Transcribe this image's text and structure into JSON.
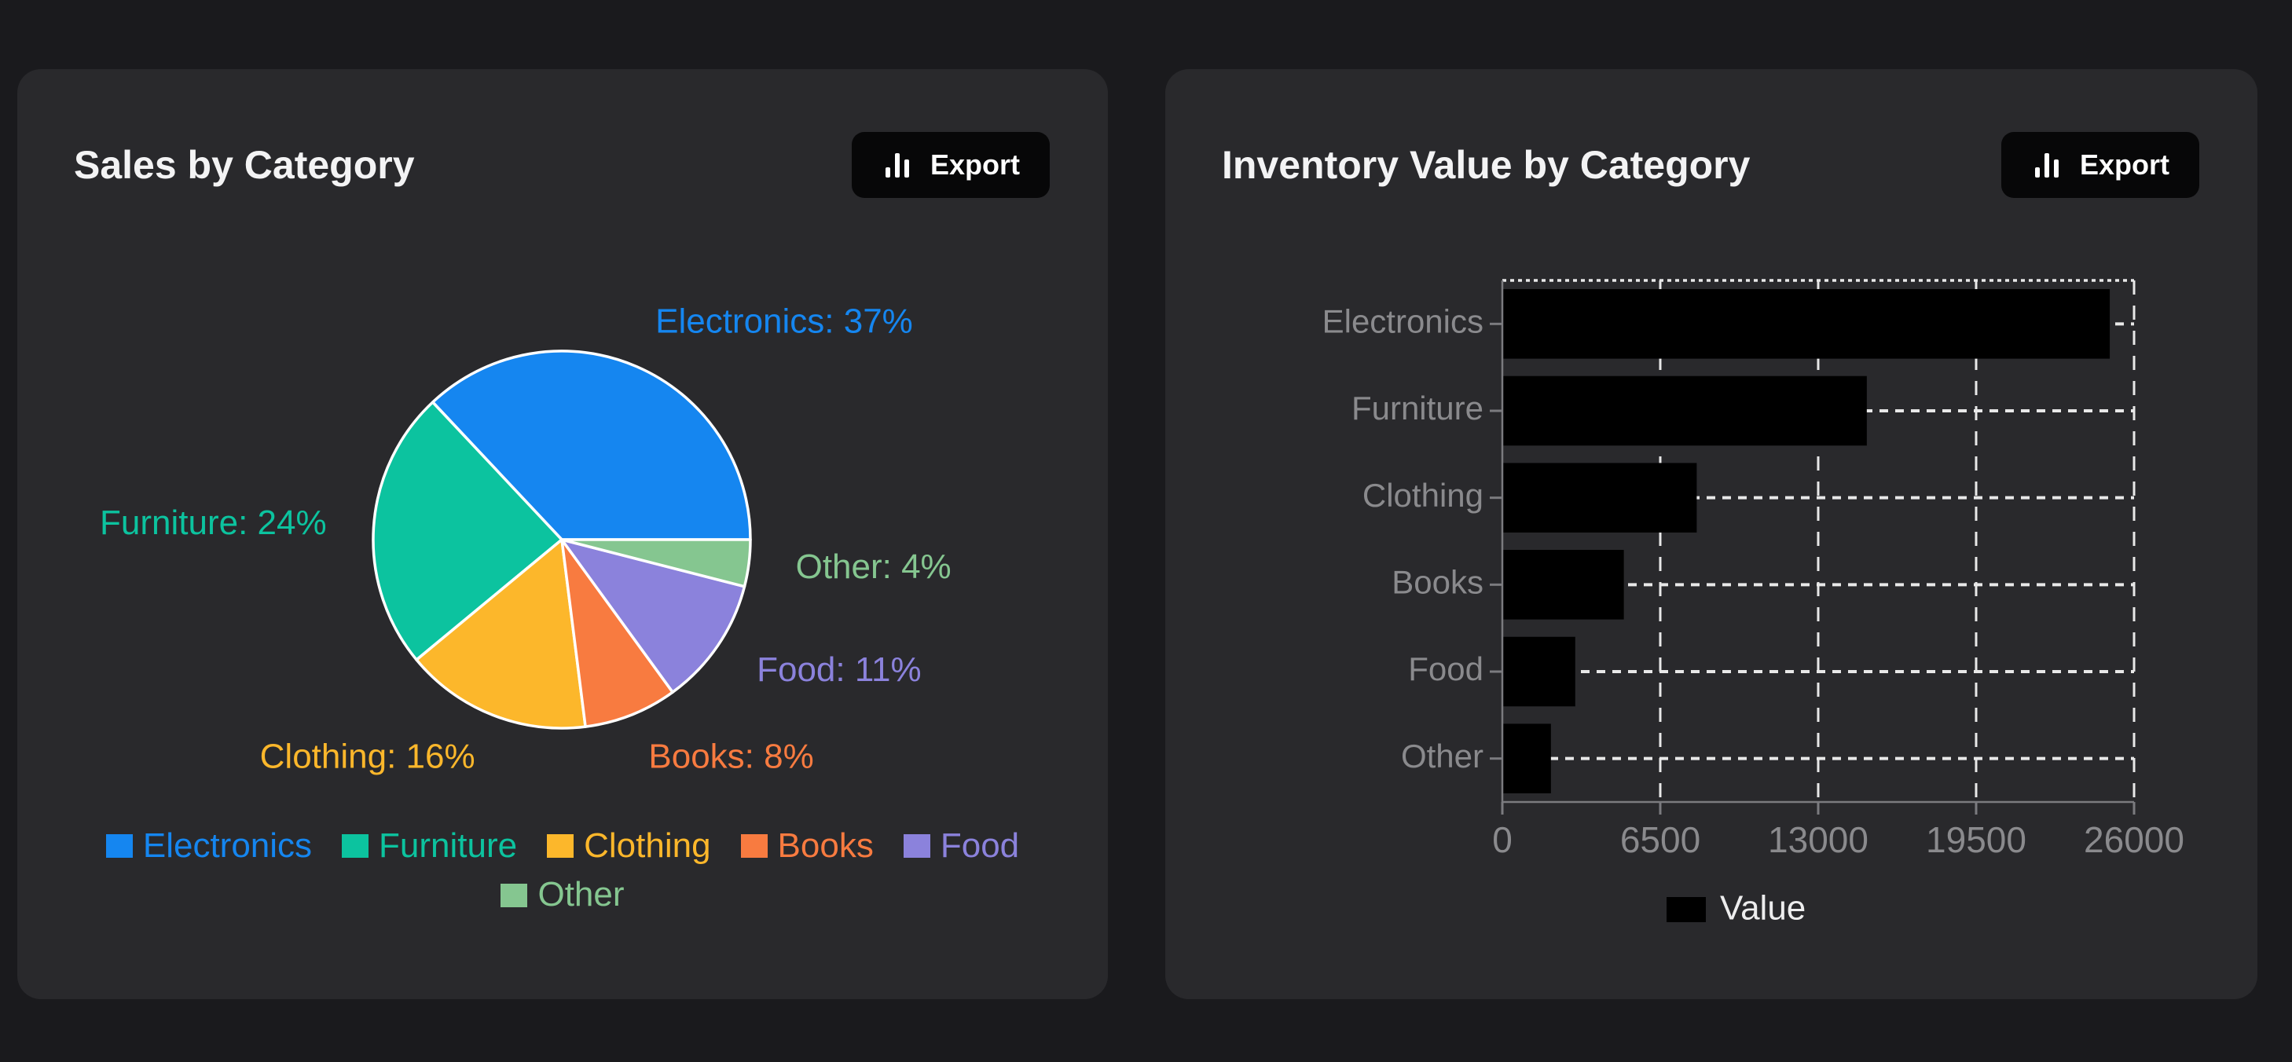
{
  "page": {
    "background": "#1a1a1d",
    "card_background": "#29292c",
    "title_color": "#f3f3f4",
    "muted_label_color": "#7b7b7f",
    "export_button_bg": "#070708",
    "export_button_fg": "#ffffff"
  },
  "cards": [
    {
      "title": "Sales by Category",
      "export_label": "Export"
    },
    {
      "title": "Inventory Value by Category",
      "export_label": "Export"
    }
  ],
  "chart_data": [
    {
      "type": "pie",
      "title": "Sales by Category",
      "categories": [
        "Electronics",
        "Furniture",
        "Clothing",
        "Books",
        "Food",
        "Other"
      ],
      "values": [
        37,
        24,
        16,
        8,
        11,
        4
      ],
      "unit": "%",
      "slice_labels": [
        "Electronics: 37%",
        "Furniture: 24%",
        "Clothing: 16%",
        "Books: 8%",
        "Food: 11%",
        "Other: 4%"
      ],
      "colors": [
        "#1586f0",
        "#0cc39f",
        "#fcb72b",
        "#f87b40",
        "#8b82dc",
        "#85c690"
      ],
      "slice_stroke": "#ffffff",
      "start_angle_deg": 0,
      "direction": "counterclockwise",
      "legend_position": "bottom",
      "legend_labels": [
        "Electronics",
        "Furniture",
        "Clothing",
        "Books",
        "Food",
        "Other"
      ]
    },
    {
      "type": "bar",
      "orientation": "horizontal",
      "title": "Inventory Value by Category",
      "categories": [
        "Electronics",
        "Furniture",
        "Clothing",
        "Books",
        "Food",
        "Other"
      ],
      "series": [
        {
          "name": "Value",
          "values": [
            25000,
            15000,
            8000,
            5000,
            3000,
            2000
          ]
        }
      ],
      "xlim": [
        0,
        26000
      ],
      "xticks": [
        "0",
        "6500",
        "13000",
        "19500",
        "26000"
      ],
      "xtick_values": [
        0,
        6500,
        13000,
        19500,
        26000
      ],
      "bar_color": "#000000",
      "grid": true,
      "gridline_color": "#e8e8e8",
      "axis_color": "#7b7b7f",
      "tick_label_color": "#8a8a8d",
      "legend_text_color": "#ededee",
      "legend_position": "bottom"
    }
  ]
}
